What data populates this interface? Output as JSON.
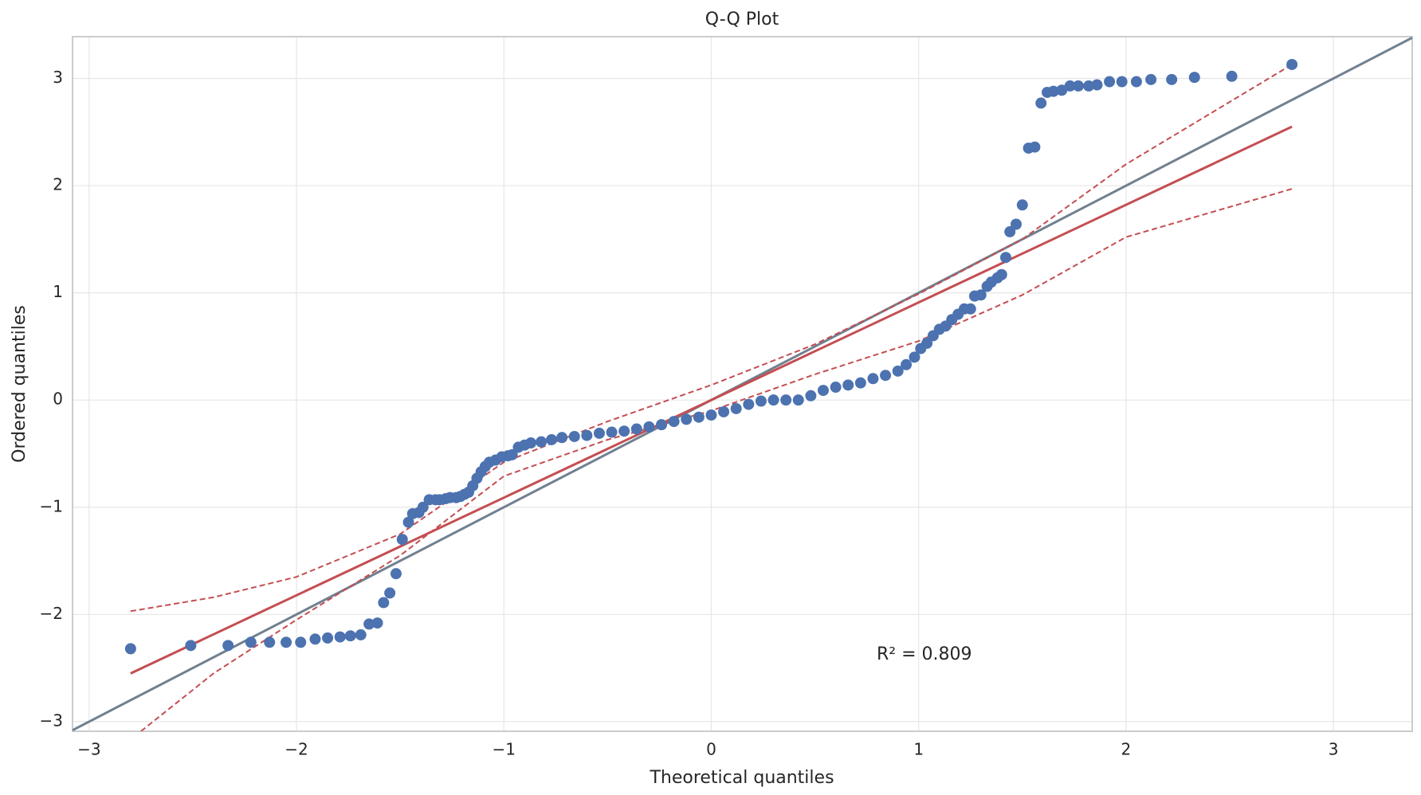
{
  "chart_data": {
    "type": "scatter",
    "title": "Q-Q Plot",
    "x_label": "Theoretical quantiles",
    "y_label": "Ordered quantiles",
    "xlim": [
      -3.08,
      3.38
    ],
    "ylim": [
      -3.09,
      3.39
    ],
    "xticks": [
      {
        "value": -3,
        "label": "−3"
      },
      {
        "value": -2,
        "label": "−2"
      },
      {
        "value": -1,
        "label": "−1"
      },
      0,
      1,
      2,
      3
    ],
    "yticks": [
      {
        "value": -3,
        "label": "−3"
      },
      {
        "value": -2,
        "label": "−2"
      },
      {
        "value": -1,
        "label": "−1"
      },
      0,
      1,
      2,
      3
    ],
    "grid": true,
    "series": [
      {
        "color": "#4c72b0",
        "x": [
          -2.8,
          -2.51,
          -2.33,
          -2.22,
          -2.13,
          -2.05,
          -1.98,
          -1.91,
          -1.85,
          -1.79,
          -1.74,
          -1.69,
          -1.65,
          -1.61,
          -1.58,
          -1.55,
          -1.52,
          -1.49,
          -1.46,
          -1.44,
          -1.41,
          -1.39,
          -1.36,
          -1.33,
          -1.31,
          -1.28,
          -1.26,
          -1.23,
          -1.21,
          -1.19,
          -1.17,
          -1.15,
          -1.13,
          -1.11,
          -1.09,
          -1.07,
          -1.04,
          -1.01,
          -0.98,
          -0.96,
          -0.93,
          -0.9,
          -0.87,
          -0.82,
          -0.77,
          -0.72,
          -0.66,
          -0.6,
          -0.54,
          -0.48,
          -0.42,
          -0.36,
          -0.3,
          -0.24,
          -0.18,
          -0.12,
          -0.06,
          0,
          0.06,
          0.12,
          0.18,
          0.24,
          0.3,
          0.36,
          0.42,
          0.48,
          0.54,
          0.6,
          0.66,
          0.72,
          0.78,
          0.84,
          0.9,
          0.94,
          0.98,
          1.01,
          1.04,
          1.07,
          1.1,
          1.13,
          1.16,
          1.19,
          1.22,
          1.25,
          1.27,
          1.3,
          1.33,
          1.35,
          1.38,
          1.4,
          1.42,
          1.44,
          1.47,
          1.5,
          1.53,
          1.56,
          1.59,
          1.62,
          1.65,
          1.69,
          1.73,
          1.77,
          1.82,
          1.86,
          1.92,
          1.98,
          2.05,
          2.12,
          2.22,
          2.33,
          2.51,
          2.8
        ],
        "values": [
          -2.32,
          -2.29,
          -2.29,
          -2.26,
          -2.26,
          -2.26,
          -2.26,
          -2.23,
          -2.22,
          -2.21,
          -2.2,
          -2.19,
          -2.09,
          -2.08,
          -1.89,
          -1.8,
          -1.62,
          -1.3,
          -1.14,
          -1.06,
          -1.05,
          -1.0,
          -0.93,
          -0.93,
          -0.93,
          -0.92,
          -0.91,
          -0.91,
          -0.9,
          -0.88,
          -0.86,
          -0.8,
          -0.73,
          -0.67,
          -0.62,
          -0.58,
          -0.56,
          -0.53,
          -0.52,
          -0.51,
          -0.44,
          -0.42,
          -0.4,
          -0.39,
          -0.37,
          -0.35,
          -0.34,
          -0.33,
          -0.31,
          -0.3,
          -0.29,
          -0.27,
          -0.25,
          -0.23,
          -0.2,
          -0.18,
          -0.16,
          -0.14,
          -0.11,
          -0.08,
          -0.04,
          -0.01,
          0,
          0,
          0,
          0.04,
          0.09,
          0.12,
          0.14,
          0.16,
          0.2,
          0.23,
          0.27,
          0.33,
          0.4,
          0.48,
          0.53,
          0.6,
          0.66,
          0.69,
          0.75,
          0.8,
          0.85,
          0.85,
          0.97,
          0.98,
          1.06,
          1.1,
          1.14,
          1.17,
          1.33,
          1.57,
          1.64,
          1.82,
          2.35,
          2.36,
          2.77,
          2.87,
          2.88,
          2.89,
          2.93,
          2.93,
          2.93,
          2.94,
          2.97,
          2.97,
          2.97,
          2.99,
          2.99,
          3.01,
          3.02,
          3.13
        ]
      }
    ],
    "lines": [
      {
        "color": "#708090",
        "dash": false,
        "x": [
          -3.08,
          3.38
        ],
        "values": [
          -3.08,
          3.38
        ]
      },
      {
        "color": "#c44e52",
        "dash": false,
        "x": [
          -2.8,
          2.8
        ],
        "values": [
          -2.55,
          2.55
        ]
      },
      {
        "color": "#c44e52",
        "dash": true,
        "x": [
          -2.8,
          -2.4,
          -2,
          -1.5,
          -1,
          -0.5,
          0,
          0.5,
          1,
          1.5,
          2,
          2.8
        ],
        "values": [
          -1.97,
          -1.84,
          -1.65,
          -1.25,
          -0.58,
          -0.2,
          0.14,
          0.52,
          0.99,
          1.5,
          2.2,
          3.13
        ]
      },
      {
        "color": "#c44e52",
        "dash": true,
        "x": [
          -2.75,
          -2.4,
          -2,
          -1.5,
          -1,
          -0.5,
          0,
          0.5,
          1,
          1.5,
          2,
          2.8
        ],
        "values": [
          -3.09,
          -2.55,
          -2.05,
          -1.45,
          -0.71,
          -0.37,
          -0.1,
          0.24,
          0.55,
          0.98,
          1.52,
          1.97
        ]
      }
    ],
    "annotations": [
      {
        "text": "R² = 0.809"
      }
    ]
  }
}
